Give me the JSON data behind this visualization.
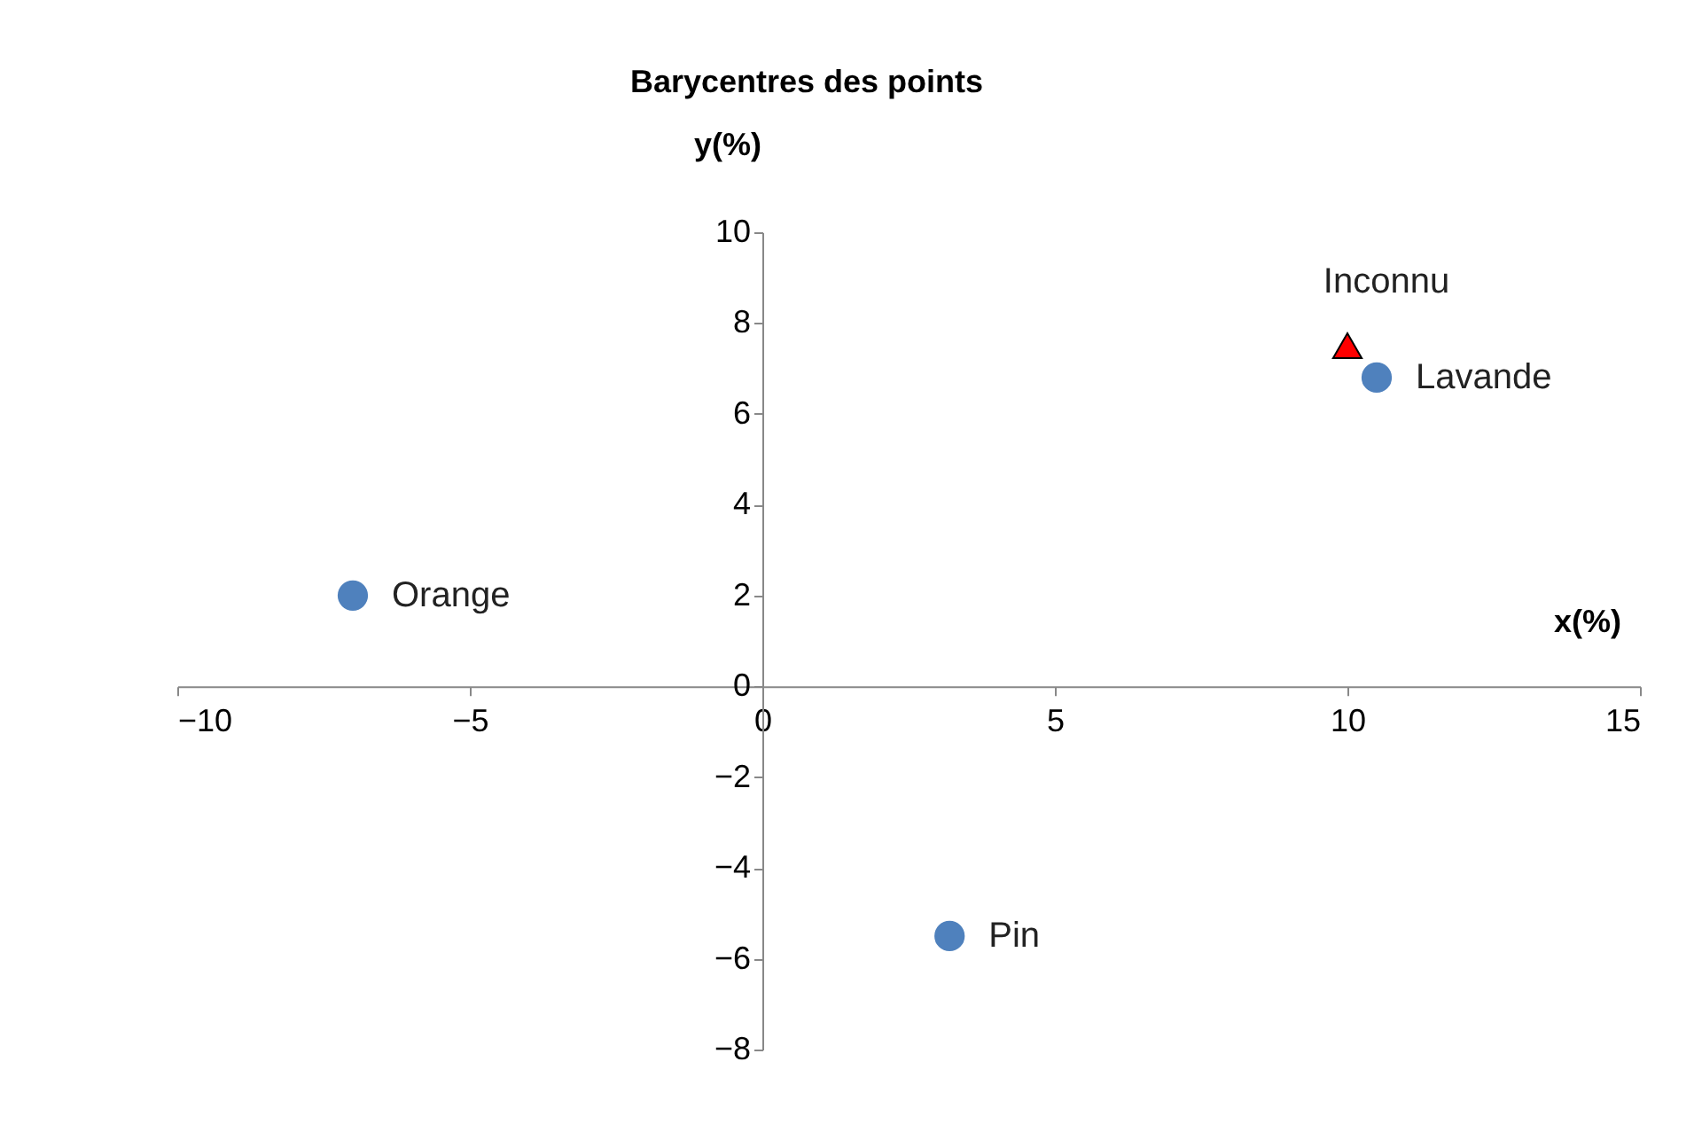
{
  "chart_data": {
    "type": "scatter",
    "title": "Barycentres des points",
    "xlabel": "x(%)",
    "ylabel": "y(%)",
    "xlim": [
      -10,
      15
    ],
    "xticks": [
      -10,
      -5,
      0,
      5,
      10,
      15
    ],
    "ylim": [
      -8,
      10
    ],
    "yticks": [
      -8,
      -6,
      -4,
      -2,
      0,
      2,
      4,
      6,
      8,
      10
    ],
    "grid": false,
    "series": [
      {
        "name": "Orange",
        "color": "#4f81bd",
        "marker": "circle",
        "x": [
          -7
        ],
        "values": [
          2
        ]
      },
      {
        "name": "Lavande",
        "color": "#4f81bd",
        "marker": "circle",
        "x": [
          10.5
        ],
        "values": [
          6.8
        ]
      },
      {
        "name": "Pin",
        "color": "#4f81bd",
        "marker": "circle",
        "x": [
          3.2
        ],
        "values": [
          -5.5
        ]
      },
      {
        "name": "Inconnu",
        "color": "#ff0000",
        "marker": "triangle",
        "x": [
          10
        ],
        "values": [
          7.5
        ]
      }
    ]
  }
}
